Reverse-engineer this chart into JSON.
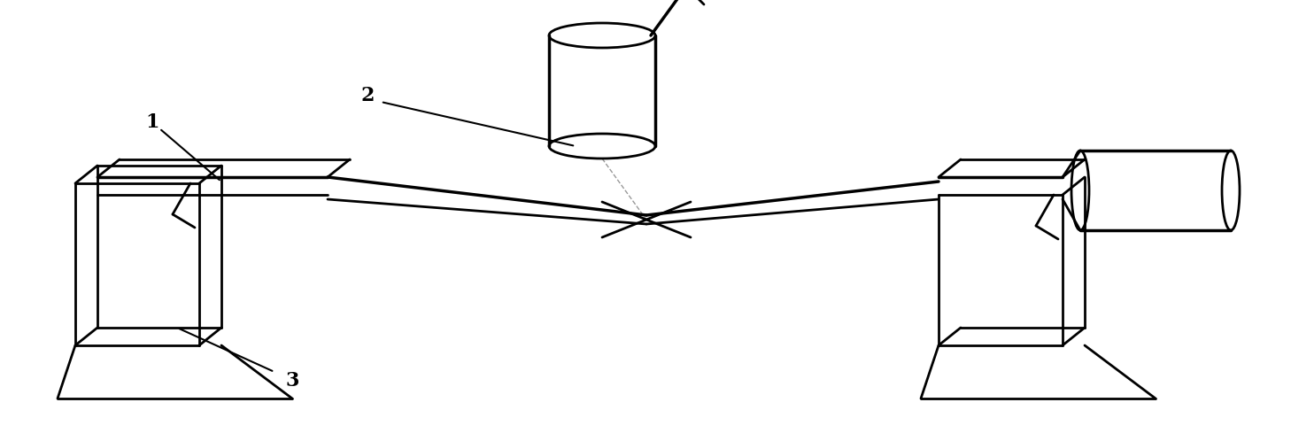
{
  "bg_color": "#ffffff",
  "line_color": "#000000",
  "line_width": 2.0,
  "fig_width": 14.58,
  "fig_height": 4.98,
  "label_1": "1",
  "label_2": "2",
  "label_3": "3"
}
